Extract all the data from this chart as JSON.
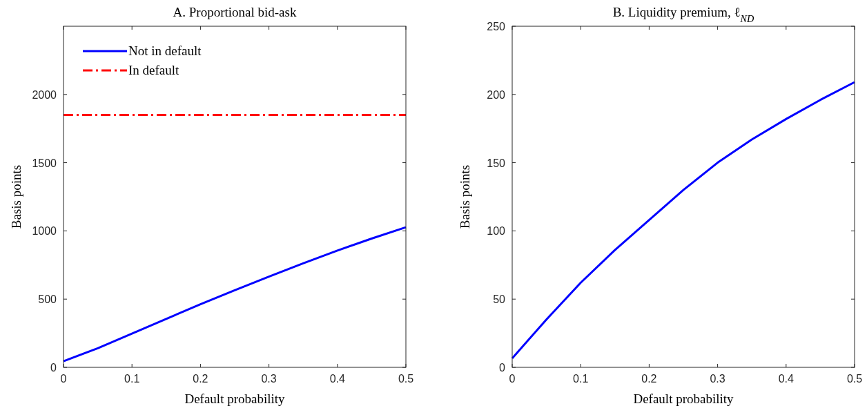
{
  "chart_data": [
    {
      "type": "line",
      "title": "A. Proportional bid-ask",
      "xlabel": "Default probability",
      "ylabel": "Basis points",
      "x": [
        0,
        0.05,
        0.1,
        0.15,
        0.2,
        0.25,
        0.3,
        0.35,
        0.4,
        0.45,
        0.5
      ],
      "xlim": [
        0,
        0.5
      ],
      "xticks": [
        0,
        0.1,
        0.2,
        0.3,
        0.4,
        0.5
      ],
      "ylim": [
        0,
        2500
      ],
      "yticks": [
        0,
        500,
        1000,
        1500,
        2000
      ],
      "legend": "top left",
      "series": [
        {
          "name": "Not in default",
          "color": "#0000ff",
          "line_style": "solid",
          "values": [
            45,
            140,
            247,
            355,
            463,
            565,
            665,
            762,
            856,
            944,
            1027
          ]
        },
        {
          "name": "In default",
          "color": "#ff0000",
          "line_style": "dashed",
          "values": [
            1850,
            1850,
            1850,
            1850,
            1850,
            1850,
            1850,
            1850,
            1850,
            1850,
            1850
          ]
        }
      ]
    },
    {
      "type": "line",
      "title": "B. Liquidity premium, ℓ$_{ND}$",
      "xlabel": "Default probability",
      "ylabel": "Basis points",
      "x": [
        0,
        0.05,
        0.1,
        0.15,
        0.2,
        0.25,
        0.3,
        0.35,
        0.4,
        0.45,
        0.5
      ],
      "xlim": [
        0,
        0.5
      ],
      "xticks": [
        0,
        0.1,
        0.2,
        0.3,
        0.4,
        0.5
      ],
      "ylim": [
        0,
        250
      ],
      "yticks": [
        0,
        50,
        100,
        150,
        200,
        250
      ],
      "series": [
        {
          "color": "#0000ff",
          "line_style": "solid",
          "values": [
            6.6,
            35,
            62,
            86,
            108,
            130,
            150,
            167,
            182,
            196,
            209
          ]
        }
      ]
    }
  ]
}
